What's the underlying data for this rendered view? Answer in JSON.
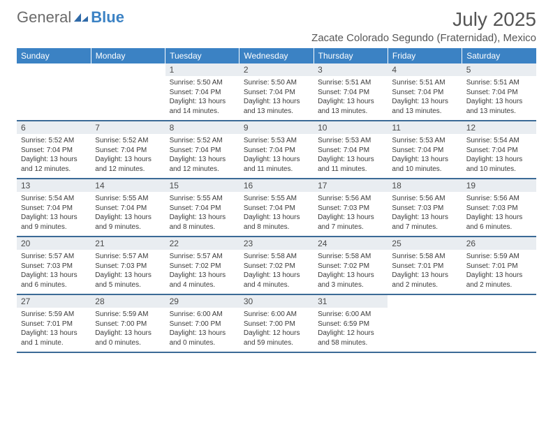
{
  "logo": {
    "gray": "General",
    "blue": "Blue"
  },
  "title": "July 2025",
  "location": "Zacate Colorado Segundo (Fraternidad), Mexico",
  "dayHeaders": [
    "Sunday",
    "Monday",
    "Tuesday",
    "Wednesday",
    "Thursday",
    "Friday",
    "Saturday"
  ],
  "colors": {
    "headerBg": "#3b82c4",
    "headerText": "#ffffff",
    "dayNumBg": "#e9edf1",
    "rowBorder": "#3b6a96",
    "bodyText": "#3a3a3a",
    "titleText": "#555555"
  },
  "weeks": [
    [
      {
        "empty": true
      },
      {
        "empty": true
      },
      {
        "num": "1",
        "sunrise": "Sunrise: 5:50 AM",
        "sunset": "Sunset: 7:04 PM",
        "daylight": "Daylight: 13 hours and 14 minutes."
      },
      {
        "num": "2",
        "sunrise": "Sunrise: 5:50 AM",
        "sunset": "Sunset: 7:04 PM",
        "daylight": "Daylight: 13 hours and 13 minutes."
      },
      {
        "num": "3",
        "sunrise": "Sunrise: 5:51 AM",
        "sunset": "Sunset: 7:04 PM",
        "daylight": "Daylight: 13 hours and 13 minutes."
      },
      {
        "num": "4",
        "sunrise": "Sunrise: 5:51 AM",
        "sunset": "Sunset: 7:04 PM",
        "daylight": "Daylight: 13 hours and 13 minutes."
      },
      {
        "num": "5",
        "sunrise": "Sunrise: 5:51 AM",
        "sunset": "Sunset: 7:04 PM",
        "daylight": "Daylight: 13 hours and 13 minutes."
      }
    ],
    [
      {
        "num": "6",
        "sunrise": "Sunrise: 5:52 AM",
        "sunset": "Sunset: 7:04 PM",
        "daylight": "Daylight: 13 hours and 12 minutes."
      },
      {
        "num": "7",
        "sunrise": "Sunrise: 5:52 AM",
        "sunset": "Sunset: 7:04 PM",
        "daylight": "Daylight: 13 hours and 12 minutes."
      },
      {
        "num": "8",
        "sunrise": "Sunrise: 5:52 AM",
        "sunset": "Sunset: 7:04 PM",
        "daylight": "Daylight: 13 hours and 12 minutes."
      },
      {
        "num": "9",
        "sunrise": "Sunrise: 5:53 AM",
        "sunset": "Sunset: 7:04 PM",
        "daylight": "Daylight: 13 hours and 11 minutes."
      },
      {
        "num": "10",
        "sunrise": "Sunrise: 5:53 AM",
        "sunset": "Sunset: 7:04 PM",
        "daylight": "Daylight: 13 hours and 11 minutes."
      },
      {
        "num": "11",
        "sunrise": "Sunrise: 5:53 AM",
        "sunset": "Sunset: 7:04 PM",
        "daylight": "Daylight: 13 hours and 10 minutes."
      },
      {
        "num": "12",
        "sunrise": "Sunrise: 5:54 AM",
        "sunset": "Sunset: 7:04 PM",
        "daylight": "Daylight: 13 hours and 10 minutes."
      }
    ],
    [
      {
        "num": "13",
        "sunrise": "Sunrise: 5:54 AM",
        "sunset": "Sunset: 7:04 PM",
        "daylight": "Daylight: 13 hours and 9 minutes."
      },
      {
        "num": "14",
        "sunrise": "Sunrise: 5:55 AM",
        "sunset": "Sunset: 7:04 PM",
        "daylight": "Daylight: 13 hours and 9 minutes."
      },
      {
        "num": "15",
        "sunrise": "Sunrise: 5:55 AM",
        "sunset": "Sunset: 7:04 PM",
        "daylight": "Daylight: 13 hours and 8 minutes."
      },
      {
        "num": "16",
        "sunrise": "Sunrise: 5:55 AM",
        "sunset": "Sunset: 7:04 PM",
        "daylight": "Daylight: 13 hours and 8 minutes."
      },
      {
        "num": "17",
        "sunrise": "Sunrise: 5:56 AM",
        "sunset": "Sunset: 7:03 PM",
        "daylight": "Daylight: 13 hours and 7 minutes."
      },
      {
        "num": "18",
        "sunrise": "Sunrise: 5:56 AM",
        "sunset": "Sunset: 7:03 PM",
        "daylight": "Daylight: 13 hours and 7 minutes."
      },
      {
        "num": "19",
        "sunrise": "Sunrise: 5:56 AM",
        "sunset": "Sunset: 7:03 PM",
        "daylight": "Daylight: 13 hours and 6 minutes."
      }
    ],
    [
      {
        "num": "20",
        "sunrise": "Sunrise: 5:57 AM",
        "sunset": "Sunset: 7:03 PM",
        "daylight": "Daylight: 13 hours and 6 minutes."
      },
      {
        "num": "21",
        "sunrise": "Sunrise: 5:57 AM",
        "sunset": "Sunset: 7:03 PM",
        "daylight": "Daylight: 13 hours and 5 minutes."
      },
      {
        "num": "22",
        "sunrise": "Sunrise: 5:57 AM",
        "sunset": "Sunset: 7:02 PM",
        "daylight": "Daylight: 13 hours and 4 minutes."
      },
      {
        "num": "23",
        "sunrise": "Sunrise: 5:58 AM",
        "sunset": "Sunset: 7:02 PM",
        "daylight": "Daylight: 13 hours and 4 minutes."
      },
      {
        "num": "24",
        "sunrise": "Sunrise: 5:58 AM",
        "sunset": "Sunset: 7:02 PM",
        "daylight": "Daylight: 13 hours and 3 minutes."
      },
      {
        "num": "25",
        "sunrise": "Sunrise: 5:58 AM",
        "sunset": "Sunset: 7:01 PM",
        "daylight": "Daylight: 13 hours and 2 minutes."
      },
      {
        "num": "26",
        "sunrise": "Sunrise: 5:59 AM",
        "sunset": "Sunset: 7:01 PM",
        "daylight": "Daylight: 13 hours and 2 minutes."
      }
    ],
    [
      {
        "num": "27",
        "sunrise": "Sunrise: 5:59 AM",
        "sunset": "Sunset: 7:01 PM",
        "daylight": "Daylight: 13 hours and 1 minute."
      },
      {
        "num": "28",
        "sunrise": "Sunrise: 5:59 AM",
        "sunset": "Sunset: 7:00 PM",
        "daylight": "Daylight: 13 hours and 0 minutes."
      },
      {
        "num": "29",
        "sunrise": "Sunrise: 6:00 AM",
        "sunset": "Sunset: 7:00 PM",
        "daylight": "Daylight: 13 hours and 0 minutes."
      },
      {
        "num": "30",
        "sunrise": "Sunrise: 6:00 AM",
        "sunset": "Sunset: 7:00 PM",
        "daylight": "Daylight: 12 hours and 59 minutes."
      },
      {
        "num": "31",
        "sunrise": "Sunrise: 6:00 AM",
        "sunset": "Sunset: 6:59 PM",
        "daylight": "Daylight: 12 hours and 58 minutes."
      },
      {
        "empty": true
      },
      {
        "empty": true
      }
    ]
  ]
}
